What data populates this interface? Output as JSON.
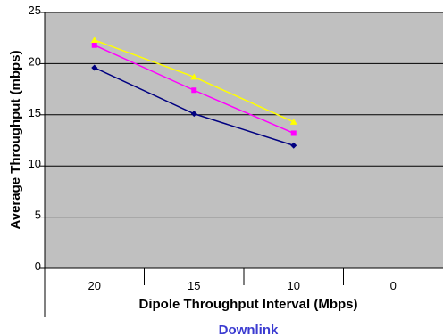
{
  "chart_data": {
    "type": "line",
    "title": "",
    "xlabel": "Dipole Throughput Interval (Mbps)",
    "ylabel": "Average Throughput (mbps)",
    "caption": "Downlink",
    "categories": [
      "20",
      "15",
      "10",
      "0"
    ],
    "ylim": [
      0,
      25
    ],
    "yticks": [
      "0",
      "5",
      "10",
      "15",
      "20",
      "25"
    ],
    "grid": true,
    "legend": "none",
    "plot_background": "#c0c0c0",
    "series": [
      {
        "color": "#000080",
        "marker": "diamond",
        "values": [
          19.6,
          15.1,
          12.0,
          null
        ]
      },
      {
        "color": "#ff00ff",
        "marker": "square",
        "values": [
          21.8,
          17.4,
          13.2,
          null
        ]
      },
      {
        "color": "#ffff00",
        "marker": "triangle",
        "values": [
          22.3,
          18.7,
          14.3,
          null
        ]
      }
    ]
  }
}
